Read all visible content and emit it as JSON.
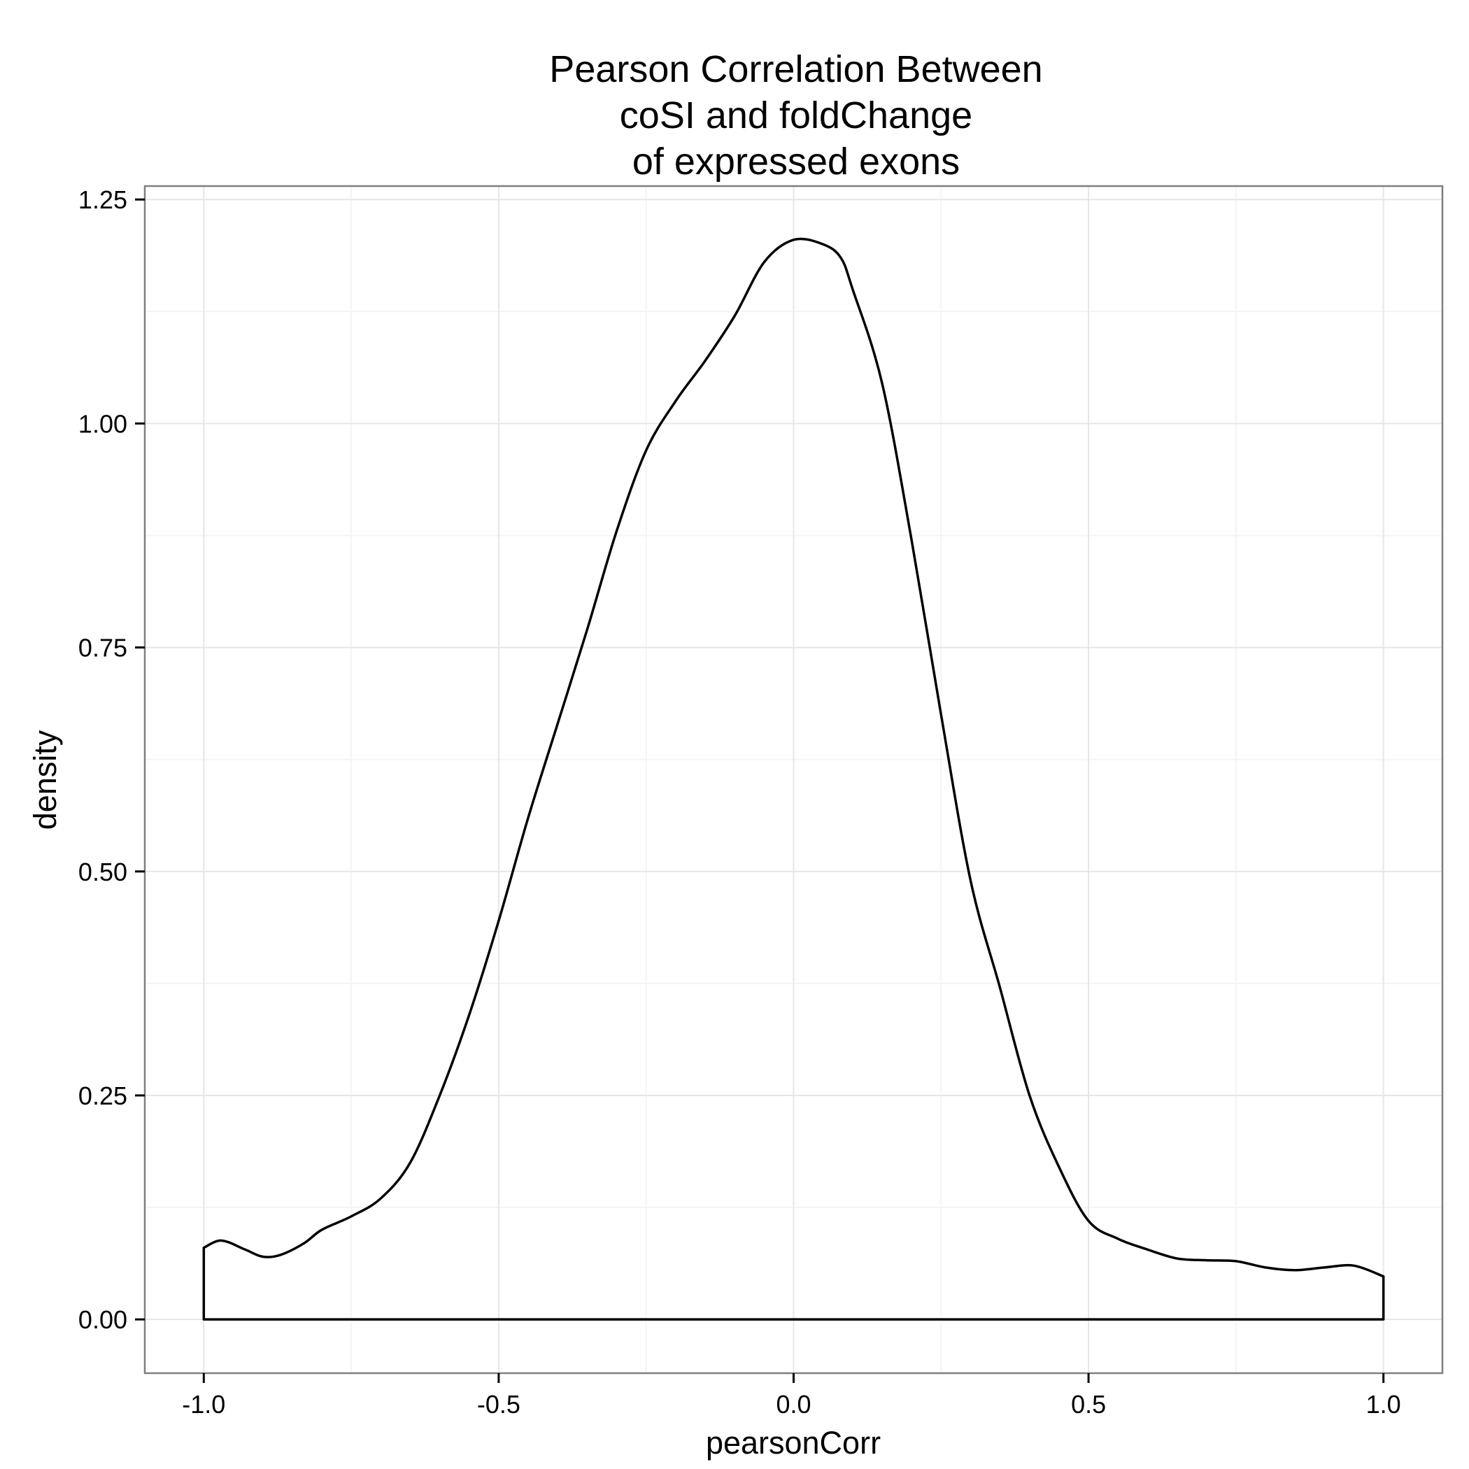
{
  "chart_data": {
    "type": "area",
    "title_lines": [
      "Pearson Correlation Between",
      "coSI and foldChange",
      "of expressed exons"
    ],
    "xlabel": "pearsonCorr",
    "ylabel": "density",
    "xlim": [
      -1.1,
      1.1
    ],
    "ylim": [
      -0.06,
      1.265
    ],
    "x_ticks": [
      -1.0,
      -0.5,
      0.0,
      0.5,
      1.0
    ],
    "x_tick_labels": [
      "-1.0",
      "-0.5",
      "0.0",
      "0.5",
      "1.0"
    ],
    "y_ticks": [
      0.0,
      0.25,
      0.5,
      0.75,
      1.0,
      1.25
    ],
    "y_tick_labels": [
      "0.00",
      "0.25",
      "0.50",
      "0.75",
      "1.00",
      "1.25"
    ],
    "grid": true,
    "fill": "none",
    "line_color": "#000000",
    "series": [
      {
        "x": [
          -1.0,
          -0.97,
          -0.93,
          -0.9,
          -0.87,
          -0.83,
          -0.8,
          -0.75,
          -0.7,
          -0.65,
          -0.6,
          -0.55,
          -0.5,
          -0.45,
          -0.4,
          -0.35,
          -0.3,
          -0.25,
          -0.2,
          -0.15,
          -0.1,
          -0.05,
          0.0,
          0.05,
          0.08,
          0.1,
          0.15,
          0.2,
          0.25,
          0.3,
          0.35,
          0.4,
          0.45,
          0.5,
          0.55,
          0.6,
          0.65,
          0.7,
          0.75,
          0.8,
          0.85,
          0.9,
          0.95,
          1.0
        ],
        "y": [
          0.08,
          0.088,
          0.078,
          0.07,
          0.072,
          0.085,
          0.1,
          0.115,
          0.135,
          0.175,
          0.25,
          0.34,
          0.445,
          0.56,
          0.665,
          0.77,
          0.88,
          0.97,
          1.025,
          1.07,
          1.12,
          1.18,
          1.205,
          1.2,
          1.185,
          1.15,
          1.045,
          0.87,
          0.675,
          0.49,
          0.37,
          0.25,
          0.17,
          0.11,
          0.09,
          0.078,
          0.068,
          0.066,
          0.065,
          0.058,
          0.055,
          0.058,
          0.06,
          0.048
        ]
      }
    ]
  }
}
